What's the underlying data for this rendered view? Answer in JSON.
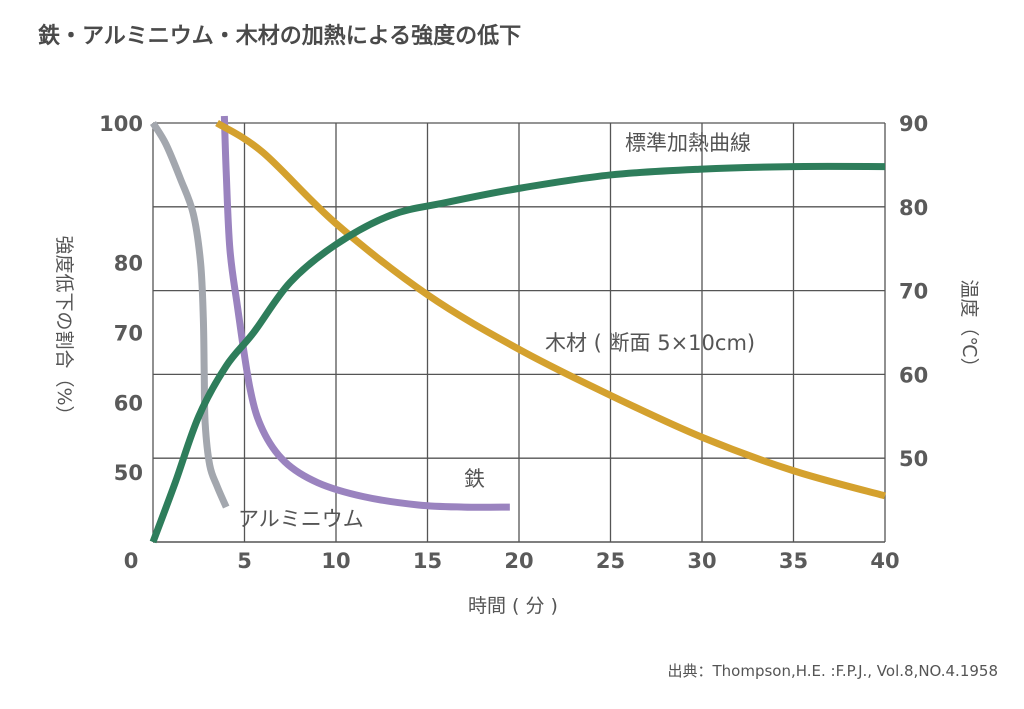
{
  "title": "鉄・アルミニウム・木材の加熱による強度の低下",
  "source": "出典：Thompson,H.E. :F.P.J., Vol.8,NO.4.1958",
  "chart_data": {
    "type": "line",
    "xlabel": "時間 ( 分 )",
    "ylabel_left": "強度低下の割合（%）",
    "ylabel_right": "温度（℃）",
    "xlim": [
      0,
      40
    ],
    "ylim_left": [
      40,
      100
    ],
    "ylim_right": [
      40,
      90
    ],
    "x_ticks": [
      "0",
      "5",
      "10",
      "15",
      "20",
      "25",
      "30",
      "35",
      "40"
    ],
    "y_ticks_left": [
      "100",
      "80",
      "70",
      "60",
      "50"
    ],
    "y_ticks_right": [
      "90",
      "80",
      "70",
      "60",
      "50"
    ],
    "grid": true,
    "series": [
      {
        "name": "アルミニウム",
        "axis": "left",
        "color": "#a3a7ae",
        "points": [
          [
            0,
            100
          ],
          [
            0.7,
            97
          ],
          [
            1.5,
            92
          ],
          [
            2.2,
            87
          ],
          [
            2.6,
            80
          ],
          [
            2.75,
            72
          ],
          [
            2.8,
            64
          ],
          [
            2.85,
            57
          ],
          [
            3.1,
            51
          ],
          [
            3.5,
            48
          ],
          [
            4.0,
            45
          ]
        ]
      },
      {
        "name": "鉄",
        "axis": "left",
        "color": "#9a83bf",
        "points": [
          [
            3.9,
            101
          ],
          [
            4.0,
            93
          ],
          [
            4.2,
            82
          ],
          [
            4.6,
            74
          ],
          [
            5.3,
            62
          ],
          [
            6.0,
            56
          ],
          [
            7.2,
            51.5
          ],
          [
            9.0,
            48.5
          ],
          [
            11.5,
            46.5
          ],
          [
            14.5,
            45.3
          ],
          [
            17,
            45
          ],
          [
            19.5,
            45
          ]
        ]
      },
      {
        "name": "木材 ( 断面 5×10cm)",
        "axis": "right",
        "color": "#d4a12e",
        "points": [
          [
            3.5,
            90
          ],
          [
            6,
            86.5
          ],
          [
            10,
            78
          ],
          [
            15,
            69.5
          ],
          [
            20,
            63
          ],
          [
            25,
            57.5
          ],
          [
            30,
            52.5
          ],
          [
            35,
            48.5
          ],
          [
            40,
            45.5
          ]
        ]
      },
      {
        "name": "標準加熱曲線",
        "axis": "right",
        "color": "#2e7d5b",
        "points": [
          [
            0,
            40
          ],
          [
            1.2,
            47
          ],
          [
            2.5,
            55
          ],
          [
            4,
            61
          ],
          [
            5.5,
            65
          ],
          [
            7.5,
            71
          ],
          [
            10,
            75.5
          ],
          [
            13,
            79
          ],
          [
            16,
            80.5
          ],
          [
            20,
            82.2
          ],
          [
            25,
            83.8
          ],
          [
            30,
            84.5
          ],
          [
            35,
            84.8
          ],
          [
            40,
            84.8
          ]
        ]
      }
    ]
  },
  "colors": {
    "grid": "#555555",
    "text": "#555555"
  }
}
